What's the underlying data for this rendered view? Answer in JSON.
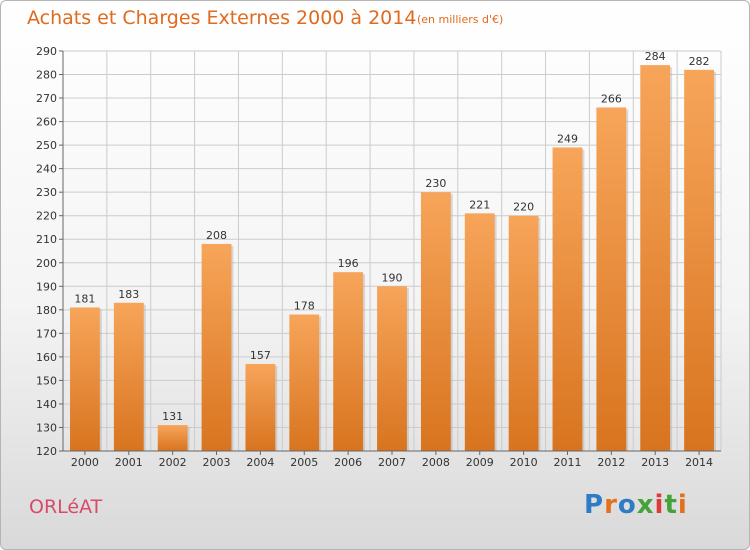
{
  "header": {
    "title": "Achats et Charges Externes 2000 à 2014",
    "subtitle": "(en milliers d'€)"
  },
  "footer": {
    "commune": "ORLéAT",
    "logo_letters": [
      "P",
      "r",
      "o",
      "x",
      "i",
      "t",
      "i"
    ],
    "logo_colors": [
      "#2e7dc4",
      "#e46f1c",
      "#2e7dc4",
      "#43a33a",
      "#e03a3a",
      "#43a33a",
      "#e46f1c"
    ]
  },
  "colors": {
    "bar_light": "#f7a55a",
    "bar_dark": "#d8741f",
    "title": "#e06a1e",
    "commune": "#d94a6a",
    "grid": "#cccccc"
  },
  "chart_data": {
    "type": "bar",
    "title": "Achats et Charges Externes 2000 à 2014",
    "subtitle": "(en milliers d'€)",
    "categories": [
      "2000",
      "2001",
      "2002",
      "2003",
      "2004",
      "2005",
      "2006",
      "2007",
      "2008",
      "2009",
      "2010",
      "2011",
      "2012",
      "2013",
      "2014"
    ],
    "values": [
      181,
      183,
      131,
      208,
      157,
      178,
      196,
      190,
      230,
      221,
      220,
      249,
      266,
      284,
      282
    ],
    "ylim": [
      120,
      290
    ],
    "yticks": [
      120,
      130,
      140,
      150,
      160,
      170,
      180,
      190,
      200,
      210,
      220,
      230,
      240,
      250,
      260,
      270,
      280,
      290
    ],
    "grid": true,
    "data_labels": true
  }
}
